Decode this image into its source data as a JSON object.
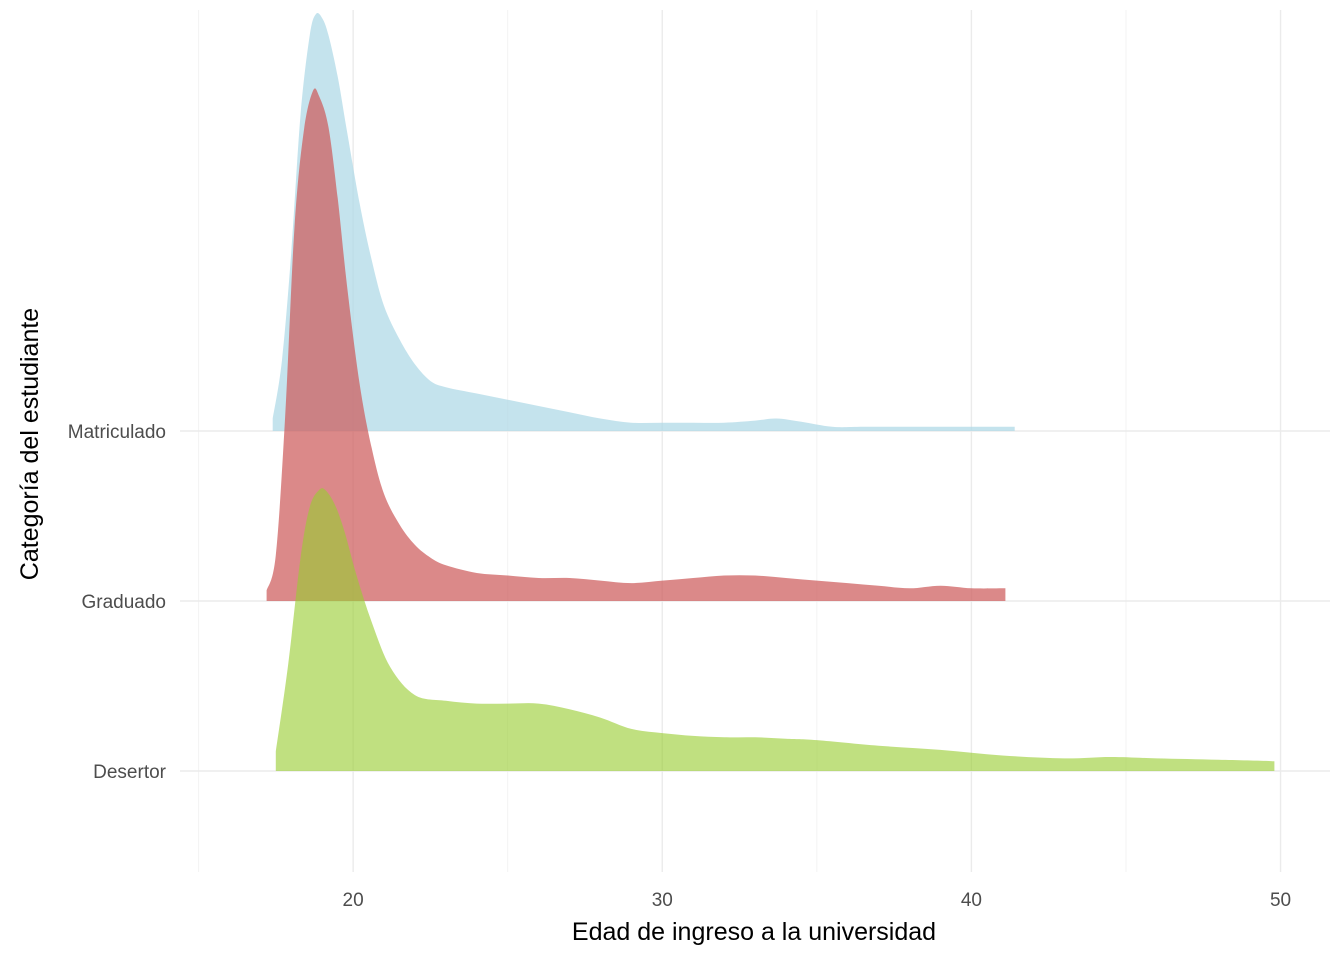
{
  "chart_data": {
    "type": "area",
    "subtype": "ridgeline-density",
    "xlabel": "Edad de ingreso a la universidad",
    "ylabel": "Categoría del estudiante",
    "xlim": [
      14.4,
      51.6
    ],
    "xticks": [
      20,
      30,
      40,
      50
    ],
    "categories": [
      "Desertor",
      "Graduado",
      "Matriculado"
    ],
    "grid": true,
    "legend": "none",
    "series": [
      {
        "name": "Matriculado",
        "color": "#add8e6",
        "opacity": 0.72,
        "x": [
          17.4,
          17.7,
          18.0,
          18.3,
          18.6,
          18.8,
          19.0,
          19.2,
          19.5,
          19.8,
          20.2,
          20.6,
          21.0,
          21.5,
          22.0,
          22.5,
          23.0,
          24.0,
          25.0,
          26.0,
          27.0,
          28.0,
          29.0,
          30.0,
          31.0,
          32.0,
          33.0,
          33.7,
          34.5,
          35.5,
          36.5,
          38.0,
          39.5,
          40.5,
          41.4
        ],
        "density": [
          0.03,
          0.17,
          0.43,
          0.76,
          0.95,
          1.0,
          0.99,
          0.95,
          0.85,
          0.72,
          0.55,
          0.41,
          0.3,
          0.22,
          0.16,
          0.12,
          0.105,
          0.09,
          0.075,
          0.06,
          0.045,
          0.03,
          0.02,
          0.02,
          0.02,
          0.02,
          0.025,
          0.03,
          0.022,
          0.01,
          0.01,
          0.01,
          0.01,
          0.01,
          0.01
        ]
      },
      {
        "name": "Graduado",
        "color": "#cd5c5c",
        "opacity": 0.72,
        "x": [
          17.2,
          17.5,
          17.8,
          18.1,
          18.4,
          18.7,
          18.9,
          19.2,
          19.5,
          19.8,
          20.2,
          20.6,
          21.0,
          21.5,
          22.0,
          22.5,
          23.0,
          24.0,
          25.0,
          26.0,
          27.0,
          28.0,
          29.0,
          30.0,
          31.0,
          32.0,
          33.0,
          34.0,
          35.0,
          36.0,
          37.0,
          38.0,
          39.0,
          40.0,
          41.1
        ],
        "density": [
          0.02,
          0.09,
          0.36,
          0.73,
          0.92,
          1.0,
          0.99,
          0.93,
          0.79,
          0.62,
          0.43,
          0.3,
          0.21,
          0.15,
          0.11,
          0.085,
          0.07,
          0.055,
          0.05,
          0.045,
          0.045,
          0.04,
          0.035,
          0.04,
          0.045,
          0.05,
          0.05,
          0.045,
          0.04,
          0.035,
          0.03,
          0.025,
          0.03,
          0.025,
          0.025
        ]
      },
      {
        "name": "Desertor",
        "color": "#9acd32",
        "opacity": 0.62,
        "x": [
          17.5,
          17.9,
          18.3,
          18.6,
          18.9,
          19.1,
          19.4,
          19.7,
          20.1,
          20.6,
          21.2,
          22.0,
          23.0,
          24.0,
          25.0,
          26.0,
          27.0,
          28.0,
          29.0,
          30.0,
          31.0,
          32.0,
          33.0,
          34.0,
          35.0,
          37.0,
          39.0,
          41.0,
          43.0,
          44.5,
          46.0,
          48.0,
          49.8
        ],
        "density": [
          0.07,
          0.38,
          0.76,
          0.94,
          1.0,
          1.0,
          0.95,
          0.86,
          0.7,
          0.53,
          0.37,
          0.27,
          0.25,
          0.24,
          0.24,
          0.24,
          0.22,
          0.19,
          0.15,
          0.135,
          0.125,
          0.12,
          0.12,
          0.115,
          0.11,
          0.09,
          0.075,
          0.055,
          0.045,
          0.05,
          0.045,
          0.04,
          0.035
        ]
      }
    ]
  }
}
